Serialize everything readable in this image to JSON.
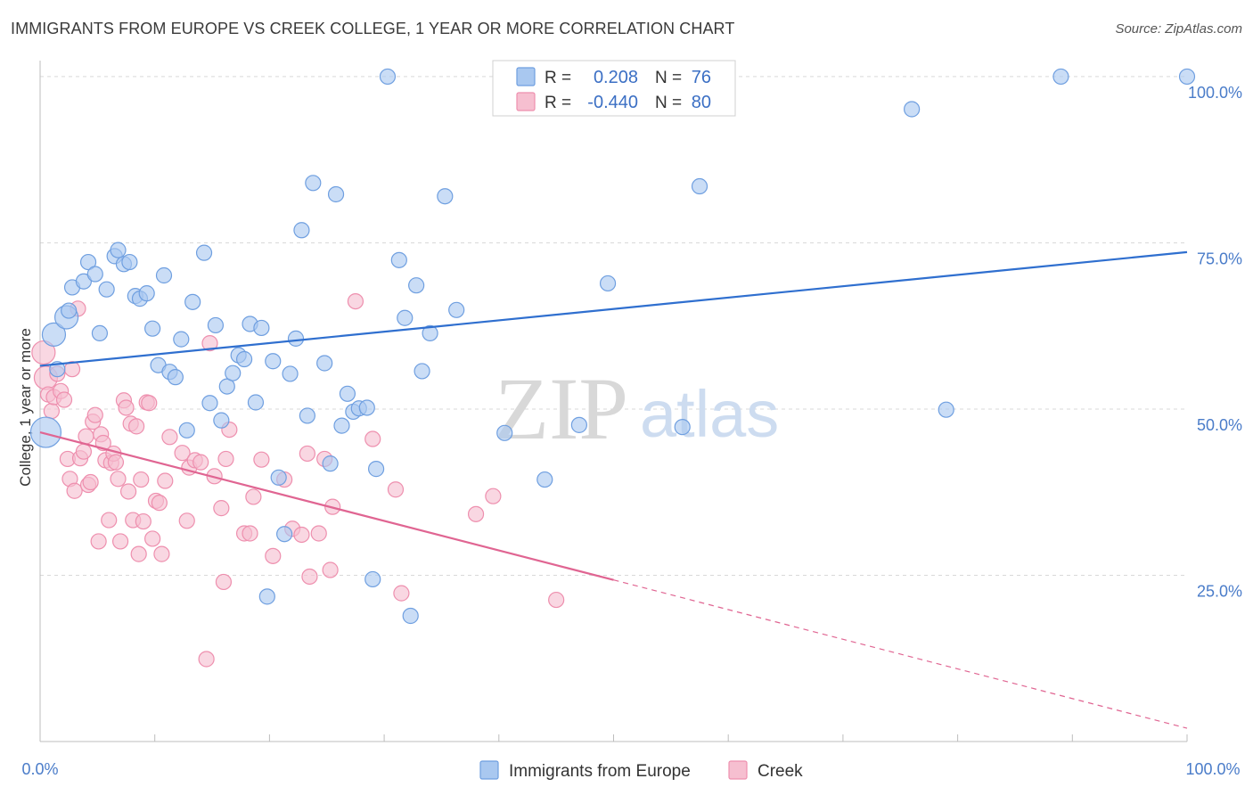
{
  "title": "IMMIGRANTS FROM EUROPE VS CREEK COLLEGE, 1 YEAR OR MORE CORRELATION CHART",
  "source": "Source: ZipAtlas.com",
  "watermark": {
    "zip": "ZIP",
    "atlas": "atlas"
  },
  "colors": {
    "blue_fill": "#a9c8f0",
    "blue_stroke": "#6f9fe0",
    "blue_line": "#2f6fcf",
    "pink_fill": "#f6bfd0",
    "pink_stroke": "#ee8fae",
    "pink_line": "#e06592",
    "tick": "#4a7cc9",
    "grid": "#d9d9d9"
  },
  "legend_box": {
    "rows": [
      {
        "r_label": "R =",
        "r_value": "0.208",
        "n_label": "N =",
        "n_value": "76"
      },
      {
        "r_label": "R =",
        "r_value": "-0.440",
        "n_label": "N =",
        "n_value": "80"
      }
    ]
  },
  "bottom_legend": [
    "Immigrants from Europe",
    "Creek"
  ],
  "chart_data": {
    "type": "scatter",
    "title": "IMMIGRANTS FROM EUROPE VS CREEK COLLEGE, 1 YEAR OR MORE CORRELATION CHART",
    "xlabel": "",
    "ylabel": "College, 1 year or more",
    "xlim": [
      0,
      100
    ],
    "ylim": [
      0,
      102
    ],
    "x_tick_labels": [
      "0.0%",
      "100.0%"
    ],
    "y_ticks": [
      25,
      50,
      75,
      100
    ],
    "y_tick_labels": [
      "25.0%",
      "50.0%",
      "75.0%",
      "100.0%"
    ],
    "grid": "horizontal dashed",
    "legend_placement": "top-center",
    "series": [
      {
        "name": "Immigrants from Europe",
        "r": 0.208,
        "n": 76,
        "trend": {
          "x0": 0,
          "y0": 56.5,
          "x1": 100,
          "y1": 73.6
        },
        "points": [
          [
            0.5,
            46.5,
            3
          ],
          [
            1.2,
            61.2,
            2
          ],
          [
            1.5,
            56,
            1
          ],
          [
            2.3,
            63.8,
            2
          ],
          [
            2.5,
            64.8,
            1
          ],
          [
            2.8,
            68.3,
            1
          ],
          [
            3.8,
            69.2,
            1
          ],
          [
            4.2,
            72.1,
            1
          ],
          [
            4.8,
            70.3,
            1
          ],
          [
            5.2,
            61.4,
            1
          ],
          [
            5.8,
            68,
            1
          ],
          [
            6.5,
            73,
            1
          ],
          [
            6.8,
            73.9,
            1
          ],
          [
            7.3,
            71.8,
            1
          ],
          [
            7.8,
            72.1,
            1
          ],
          [
            8.3,
            67,
            1
          ],
          [
            8.7,
            66.6,
            1
          ],
          [
            9.3,
            67.4,
            1
          ],
          [
            9.8,
            62.1,
            1
          ],
          [
            10.3,
            56.6,
            1
          ],
          [
            10.8,
            70.1,
            1
          ],
          [
            11.3,
            55.6,
            1
          ],
          [
            11.8,
            54.8,
            1
          ],
          [
            12.3,
            60.5,
            1
          ],
          [
            12.8,
            46.8,
            1
          ],
          [
            13.3,
            66.1,
            1
          ],
          [
            14.3,
            73.5,
            1
          ],
          [
            14.8,
            50.9,
            1
          ],
          [
            15.3,
            62.6,
            1
          ],
          [
            15.8,
            48.3,
            1
          ],
          [
            16.3,
            53.4,
            1
          ],
          [
            16.8,
            55.4,
            1
          ],
          [
            17.3,
            58.1,
            1
          ],
          [
            17.8,
            57.5,
            1
          ],
          [
            18.3,
            62.8,
            1
          ],
          [
            18.8,
            51,
            1
          ],
          [
            19.3,
            62.2,
            1
          ],
          [
            19.8,
            21.8,
            1
          ],
          [
            20.3,
            57.2,
            1
          ],
          [
            20.8,
            39.7,
            1
          ],
          [
            21.3,
            31.2,
            1
          ],
          [
            21.8,
            55.3,
            1
          ],
          [
            22.3,
            60.6,
            1
          ],
          [
            22.8,
            76.9,
            1
          ],
          [
            23.3,
            49,
            1
          ],
          [
            23.8,
            84,
            1
          ],
          [
            24.8,
            56.9,
            1
          ],
          [
            25.3,
            41.8,
            1
          ],
          [
            25.8,
            82.3,
            1
          ],
          [
            26.3,
            47.5,
            1
          ],
          [
            26.8,
            52.3,
            1
          ],
          [
            27.3,
            49.6,
            1
          ],
          [
            27.8,
            50.1,
            1
          ],
          [
            28.5,
            50.2,
            1
          ],
          [
            29,
            24.4,
            1
          ],
          [
            29.3,
            41,
            1
          ],
          [
            30.3,
            100,
            1
          ],
          [
            31.3,
            72.4,
            1
          ],
          [
            31.8,
            63.7,
            1
          ],
          [
            32.3,
            18.9,
            1
          ],
          [
            32.8,
            68.6,
            1
          ],
          [
            33.3,
            55.7,
            1
          ],
          [
            34,
            61.4,
            1
          ],
          [
            35.3,
            82,
            1
          ],
          [
            36.3,
            64.9,
            1
          ],
          [
            40.5,
            46.4,
            1
          ],
          [
            44,
            39.4,
            1
          ],
          [
            47,
            47.6,
            1
          ],
          [
            49.5,
            68.9,
            1
          ],
          [
            56,
            47.3,
            1
          ],
          [
            57.5,
            83.5,
            1
          ],
          [
            76,
            95.1,
            1
          ],
          [
            79,
            49.9,
            1
          ],
          [
            89,
            100,
            1
          ],
          [
            100,
            100,
            1
          ]
        ]
      },
      {
        "name": "Creek",
        "r": -0.44,
        "n": 80,
        "trend": {
          "x0": 0,
          "y0": 46.5,
          "x1": 50,
          "y1": 24.3,
          "dash_to": {
            "x": 100,
            "y": 2
          }
        },
        "points": [
          [
            0.3,
            58.5,
            2
          ],
          [
            0.5,
            54.7,
            2
          ],
          [
            0.7,
            52.2,
            1
          ],
          [
            1,
            49.7,
            1
          ],
          [
            1.2,
            51.8,
            1
          ],
          [
            1.5,
            55.3,
            1
          ],
          [
            1.8,
            52.7,
            1
          ],
          [
            2.1,
            51.4,
            1
          ],
          [
            2.4,
            42.5,
            1
          ],
          [
            2.6,
            39.5,
            1
          ],
          [
            2.8,
            56,
            1
          ],
          [
            3,
            37.7,
            1
          ],
          [
            3.3,
            65.1,
            1
          ],
          [
            3.5,
            42.6,
            1
          ],
          [
            3.8,
            43.6,
            1
          ],
          [
            4,
            45.9,
            1
          ],
          [
            4.2,
            38.6,
            1
          ],
          [
            4.4,
            39,
            1
          ],
          [
            4.6,
            48.1,
            1
          ],
          [
            4.8,
            49.1,
            1
          ],
          [
            5.1,
            30.1,
            1
          ],
          [
            5.3,
            46.2,
            1
          ],
          [
            5.5,
            44.9,
            1
          ],
          [
            5.7,
            42.3,
            1
          ],
          [
            6,
            33.3,
            1
          ],
          [
            6.2,
            41.9,
            1
          ],
          [
            6.4,
            43.3,
            1
          ],
          [
            6.6,
            42,
            1
          ],
          [
            6.8,
            39.5,
            1
          ],
          [
            7,
            30.1,
            1
          ],
          [
            7.3,
            51.3,
            1
          ],
          [
            7.5,
            50.2,
            1
          ],
          [
            7.7,
            37.6,
            1
          ],
          [
            7.9,
            47.8,
            1
          ],
          [
            8.1,
            33.3,
            1
          ],
          [
            8.4,
            47.4,
            1
          ],
          [
            8.6,
            28.2,
            1
          ],
          [
            8.8,
            39.4,
            1
          ],
          [
            9,
            33.1,
            1
          ],
          [
            9.3,
            51,
            1
          ],
          [
            9.5,
            50.9,
            1
          ],
          [
            9.8,
            30.5,
            1
          ],
          [
            10.1,
            36.2,
            1
          ],
          [
            10.4,
            35.9,
            1
          ],
          [
            10.6,
            28.2,
            1
          ],
          [
            10.9,
            39.2,
            1
          ],
          [
            11.3,
            45.8,
            1
          ],
          [
            12.4,
            43.4,
            1
          ],
          [
            12.8,
            33.2,
            1
          ],
          [
            13,
            41.2,
            1
          ],
          [
            13.5,
            42.3,
            1
          ],
          [
            14,
            42,
            1
          ],
          [
            14.5,
            12.4,
            1
          ],
          [
            14.8,
            59.9,
            1
          ],
          [
            15.2,
            39.9,
            1
          ],
          [
            15.8,
            35.1,
            1
          ],
          [
            16,
            24,
            1
          ],
          [
            16.2,
            42.5,
            1
          ],
          [
            16.5,
            46.9,
            1
          ],
          [
            17.8,
            31.3,
            1
          ],
          [
            18.3,
            31.3,
            1
          ],
          [
            18.6,
            36.8,
            1
          ],
          [
            19.3,
            42.4,
            1
          ],
          [
            20.3,
            27.9,
            1
          ],
          [
            21.3,
            39.4,
            1
          ],
          [
            22,
            32,
            1
          ],
          [
            22.8,
            31.1,
            1
          ],
          [
            23.3,
            43.3,
            1
          ],
          [
            23.5,
            24.8,
            1
          ],
          [
            24.3,
            31.3,
            1
          ],
          [
            24.8,
            42.5,
            1
          ],
          [
            25.3,
            25.8,
            1
          ],
          [
            25.5,
            35.3,
            1
          ],
          [
            27.5,
            66.2,
            1
          ],
          [
            29,
            45.5,
            1
          ],
          [
            31,
            37.9,
            1
          ],
          [
            31.5,
            22.3,
            1
          ],
          [
            38,
            34.2,
            1
          ],
          [
            39.5,
            36.9,
            1
          ],
          [
            45,
            21.3,
            1
          ]
        ]
      }
    ]
  }
}
